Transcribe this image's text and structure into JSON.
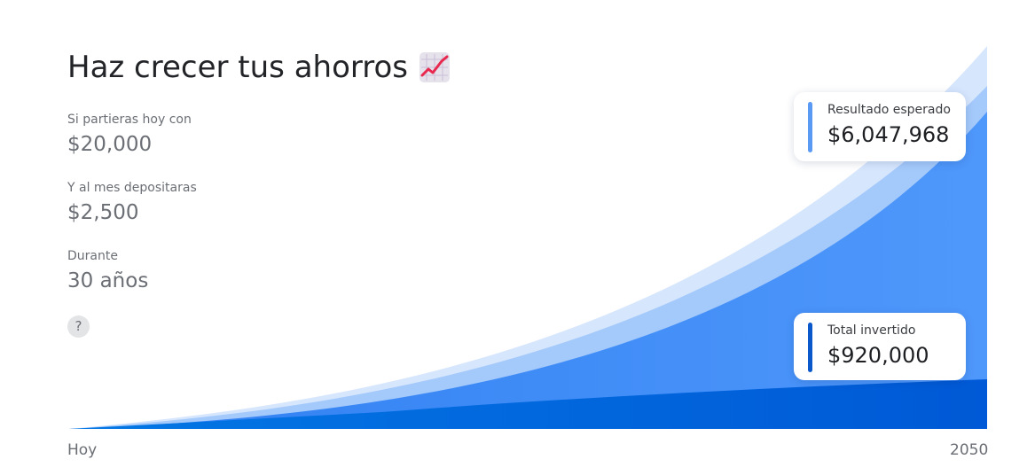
{
  "header": {
    "title": "Haz crecer tus ahorros",
    "icon": "chart-increasing-icon"
  },
  "inputs": {
    "initial": {
      "label": "Si partieras hoy con",
      "value": "$20,000"
    },
    "monthly": {
      "label": "Y al mes depositaras",
      "value": "$2,500"
    },
    "duration": {
      "label": "Durante",
      "value": "30 años"
    },
    "help_label": "?"
  },
  "results": {
    "expected": {
      "label": "Resultado esperado",
      "value": "$6,047,968"
    },
    "invested": {
      "label": "Total invertido",
      "value": "$920,000"
    }
  },
  "axis": {
    "start": "Hoy",
    "end": "2050"
  },
  "colors": {
    "accent_light": "#5a9af5",
    "accent_dark": "#0a58c9",
    "area_light": "#d6e6fd",
    "area_mid": "#a4c9fb",
    "area_main": "#4a94f8",
    "area_base": "#0e64dd"
  }
}
